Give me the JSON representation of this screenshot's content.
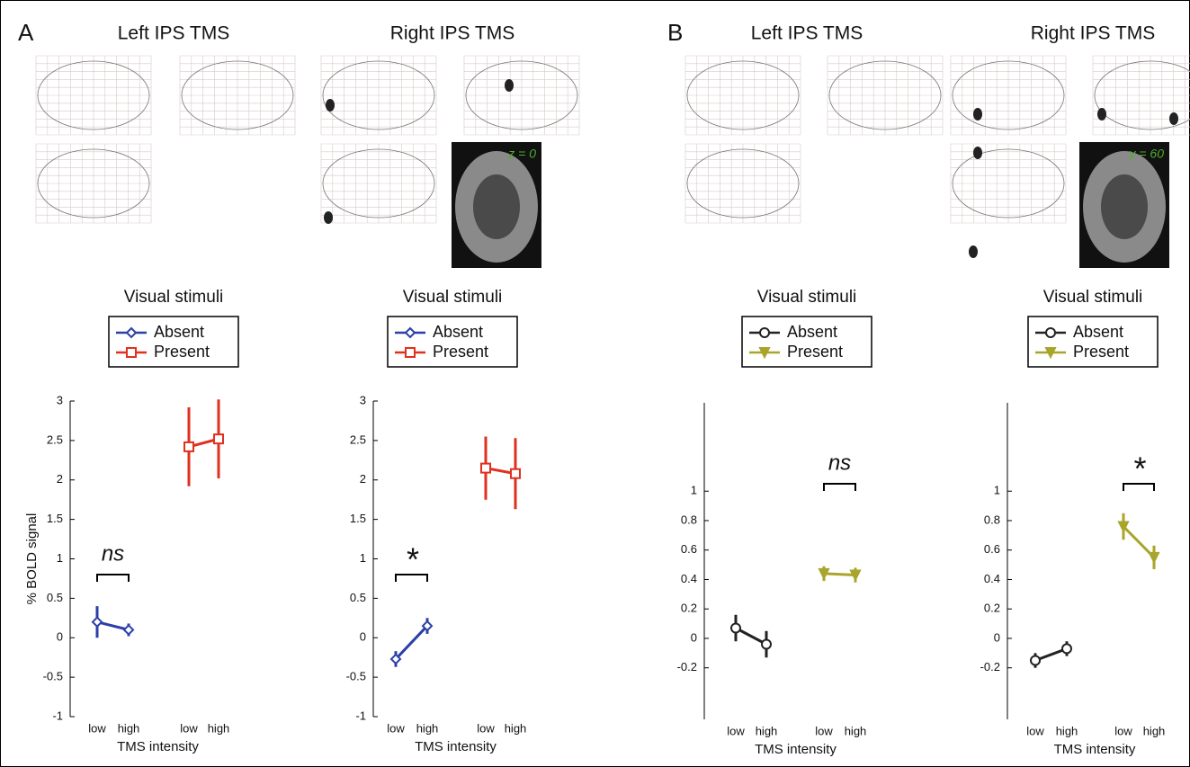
{
  "chart_data": [
    {
      "type": "line",
      "panel": "A",
      "title": "Left IPS TMS",
      "legend_title": "Visual stimuli",
      "categories": [
        "low",
        "high",
        "low",
        "high"
      ],
      "series": [
        {
          "name": "Absent",
          "color": "#2b3fa8",
          "marker": "diamond",
          "values": [
            0.2,
            0.1,
            null,
            null
          ],
          "errors": [
            0.2,
            0.08,
            null,
            null
          ]
        },
        {
          "name": "Present",
          "color": "#e0301e",
          "marker": "square",
          "values": [
            null,
            null,
            2.42,
            2.52
          ],
          "errors": [
            null,
            null,
            0.5,
            0.5
          ]
        }
      ],
      "ylim": [
        -1,
        3
      ],
      "yticks": [
        -1,
        -0.5,
        0,
        0.5,
        1,
        1.5,
        2,
        2.5,
        3
      ],
      "ylabel": "% BOLD signal",
      "xlabel": "TMS intensity",
      "annotations": [
        {
          "text": "ns",
          "y": 0.8,
          "between": [
            0,
            1
          ]
        }
      ]
    },
    {
      "type": "line",
      "title": "Right IPS TMS",
      "legend_title": "Visual stimuli",
      "slice_label": "z = 0",
      "categories": [
        "low",
        "high",
        "low",
        "high"
      ],
      "series": [
        {
          "name": "Absent",
          "color": "#2b3fa8",
          "marker": "diamond",
          "values": [
            -0.27,
            0.15,
            null,
            null
          ],
          "errors": [
            0.1,
            0.1,
            null,
            null
          ]
        },
        {
          "name": "Present",
          "color": "#e0301e",
          "marker": "square",
          "values": [
            null,
            null,
            2.15,
            2.08
          ],
          "errors": [
            null,
            null,
            0.4,
            0.45
          ]
        }
      ],
      "ylim": [
        -1,
        3
      ],
      "yticks": [
        -1,
        -0.5,
        0,
        0.5,
        1,
        1.5,
        2,
        2.5,
        3
      ],
      "xlabel": "TMS intensity",
      "annotations": [
        {
          "text": "*",
          "y": 0.8,
          "between": [
            0,
            1
          ]
        }
      ]
    },
    {
      "type": "line",
      "panel": "B",
      "title": "Left IPS TMS",
      "legend_title": "Visual stimuli",
      "categories": [
        "low",
        "high",
        "low",
        "high"
      ],
      "series": [
        {
          "name": "Absent",
          "color": "#222222",
          "marker": "circle",
          "values": [
            0.07,
            -0.04,
            null,
            null
          ],
          "errors": [
            0.09,
            0.09,
            null,
            null
          ]
        },
        {
          "name": "Present",
          "color": "#a8a52a",
          "marker": "triangle",
          "values": [
            null,
            null,
            0.44,
            0.43
          ],
          "errors": [
            null,
            null,
            0.05,
            0.05
          ]
        }
      ],
      "ylim": [
        -0.55,
        1.6
      ],
      "yticks": [
        -0.2,
        0,
        0.2,
        0.4,
        0.6,
        0.8,
        1
      ],
      "xlabel": "TMS intensity",
      "annotations": [
        {
          "text": "ns",
          "y": 1.05,
          "between": [
            2,
            3
          ]
        }
      ]
    },
    {
      "type": "line",
      "title": "Right IPS TMS",
      "legend_title": "Visual stimuli",
      "slice_label": "y = 60",
      "categories": [
        "low",
        "high",
        "low",
        "high"
      ],
      "series": [
        {
          "name": "Absent",
          "color": "#222222",
          "marker": "circle",
          "values": [
            -0.15,
            -0.07,
            null,
            null
          ],
          "errors": [
            0.05,
            0.05,
            null,
            null
          ]
        },
        {
          "name": "Present",
          "color": "#a8a52a",
          "marker": "triangle",
          "values": [
            null,
            null,
            0.76,
            0.55
          ],
          "errors": [
            null,
            null,
            0.09,
            0.08
          ]
        }
      ],
      "ylim": [
        -0.55,
        1.6
      ],
      "yticks": [
        -0.2,
        0,
        0.2,
        0.4,
        0.6,
        0.8,
        1
      ],
      "xlabel": "TMS intensity",
      "annotations": [
        {
          "text": "*",
          "y": 1.05,
          "between": [
            2,
            3
          ]
        }
      ]
    }
  ]
}
